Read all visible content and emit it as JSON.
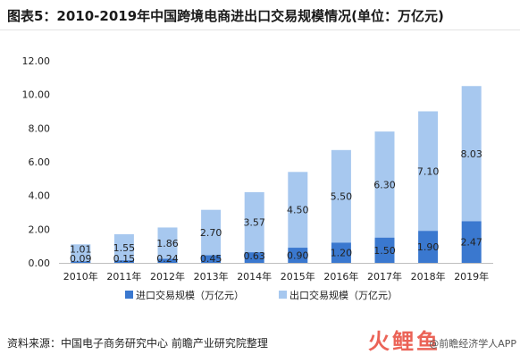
{
  "title": "图表5：2010-2019年中国跨境电商进出口交易规模情况(单位：万亿元)",
  "source": "资料来源：中国电子商务研究中心 前瞻产业研究院整理",
  "footer_brand": "@前瞻经济学人APP",
  "logo_text": "火鲤鱼",
  "colors": {
    "import": "#3a78cf",
    "export": "#a7c8ef",
    "grid": "#d9d9d9",
    "text": "#222222"
  },
  "chart_data": {
    "type": "bar",
    "stacked": true,
    "title": "图表5：2010-2019年中国跨境电商进出口交易规模情况(单位：万亿元)",
    "categories": [
      "2010年",
      "2011年",
      "2012年",
      "2013年",
      "2014年",
      "2015年",
      "2016年",
      "2017年",
      "2018年",
      "2019年"
    ],
    "series": [
      {
        "name": "进口交易规模（万亿元）",
        "values": [
          0.09,
          0.15,
          0.24,
          0.45,
          0.63,
          0.9,
          1.2,
          1.5,
          1.9,
          2.47
        ],
        "labels": [
          "0.09",
          "0.15",
          "0.24",
          "0.45",
          "0.63",
          "0.90",
          "1.20",
          "1.50",
          "1.90",
          "2.47"
        ]
      },
      {
        "name": "出口交易规模（万亿元）",
        "values": [
          1.01,
          1.55,
          1.86,
          2.7,
          3.57,
          4.5,
          5.5,
          6.3,
          7.1,
          8.03
        ],
        "labels": [
          "1.01",
          "1.55",
          "1.86",
          "2.70",
          "3.57",
          "4.50",
          "5.50",
          "6.30",
          "7.10",
          "8.03"
        ]
      }
    ],
    "yticks": [
      "0.00",
      "2.00",
      "4.00",
      "6.00",
      "8.00",
      "10.00",
      "12.00"
    ],
    "ylim": [
      0,
      12
    ],
    "grid": false,
    "legend": "bottom"
  }
}
